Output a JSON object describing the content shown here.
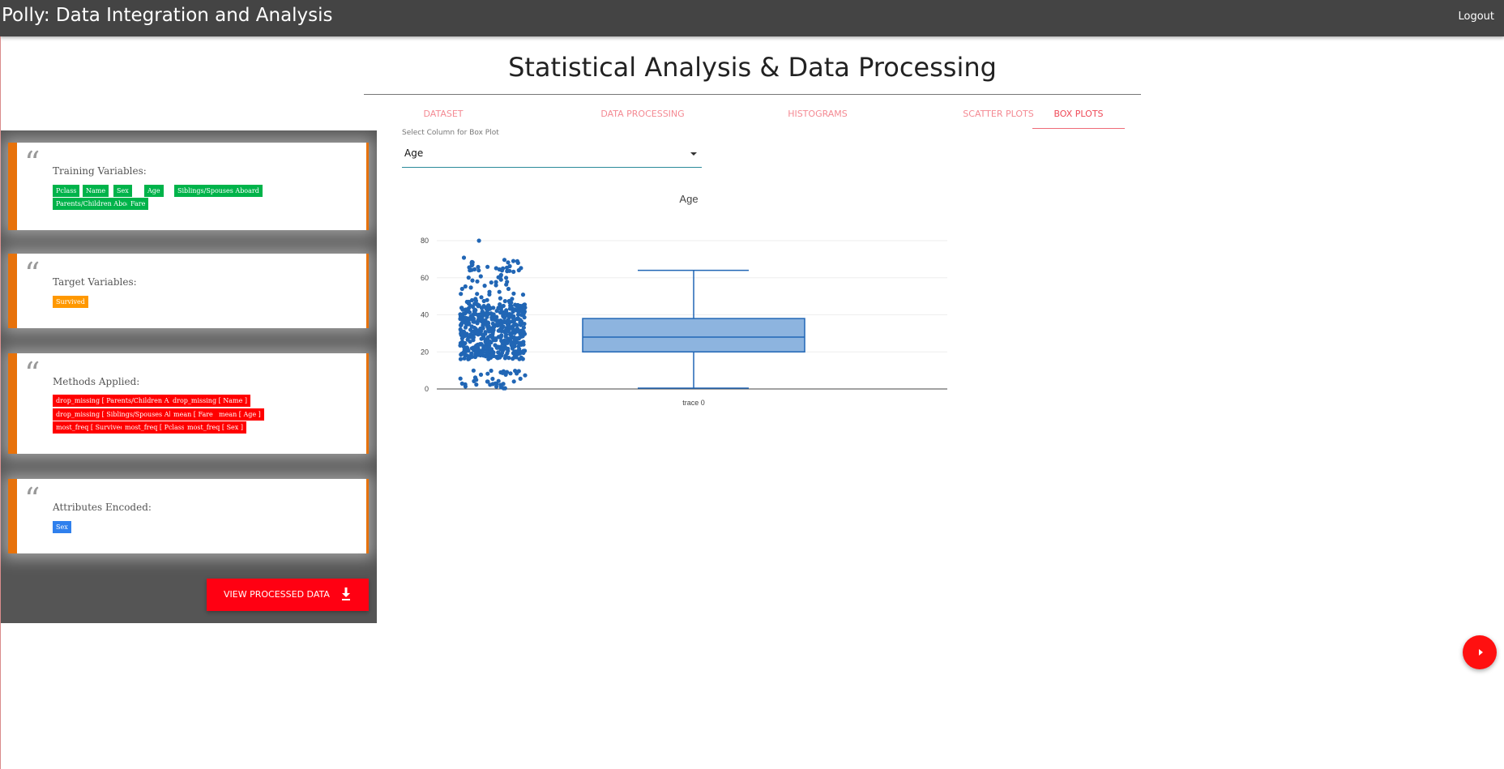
{
  "header": {
    "app_title": "Polly: Data Integration and Analysis",
    "logout_label": "Logout"
  },
  "page_title": "Statistical Analysis & Data Processing",
  "tabs": [
    {
      "label": "DATASET",
      "active": false
    },
    {
      "label": "DATA PROCESSING",
      "active": false
    },
    {
      "label": "HISTOGRAMS",
      "active": false
    },
    {
      "label": "SCATTER PLOTS",
      "active": false
    },
    {
      "label": "BOX PLOTS",
      "active": true
    }
  ],
  "sidebar": {
    "training": {
      "title": "Training Variables:",
      "chips": [
        "Pclass",
        "Name",
        "Sex",
        "Age",
        "Siblings/Spouses Aboard",
        "Parents/Children Aboard",
        "Fare"
      ]
    },
    "target": {
      "title": "Target Variables:",
      "chips": [
        "Survived"
      ]
    },
    "methods": {
      "title": "Methods Applied:",
      "chips": [
        "drop_missing [ Parents/Children Aboard ]",
        "drop_missing [ Name ]",
        "drop_missing [ Siblings/Spouses Aboard ]",
        "mean [ Fare ]",
        "mean [ Age ]",
        "most_freq [ Survived ]",
        "most_freq [ Pclass ]",
        "most_freq [ Sex ]"
      ]
    },
    "encoded": {
      "title": "Attributes Encoded:",
      "chips": [
        "Sex"
      ]
    },
    "view_button_label": "VIEW PROCESSED DATA"
  },
  "box_select": {
    "label": "Select Column for Box Plot",
    "value": "Age"
  },
  "colors": {
    "accent_red": "#ff0012",
    "orange_border": "#e7720b",
    "chip_green": "#00b34a",
    "chip_orange": "#ff9800",
    "chip_red": "#ff0000",
    "chip_blue": "#2f80ed",
    "box_fill": "#8db4df",
    "box_line": "#2166b5",
    "point": "#2166b5"
  },
  "chart_data": {
    "type": "box",
    "title": "Age",
    "xlabel": "",
    "ylabel": "",
    "ylim": [
      0,
      80
    ],
    "yticks": [
      0,
      20,
      40,
      60,
      80
    ],
    "categories": [
      "trace 0"
    ],
    "series": [
      {
        "name": "trace 0",
        "min": 0.42,
        "q1": 20,
        "median": 28,
        "q3": 38,
        "max": 64,
        "outliers_max": 80,
        "points_shown": true
      }
    ],
    "grid": true,
    "legend": "none"
  }
}
